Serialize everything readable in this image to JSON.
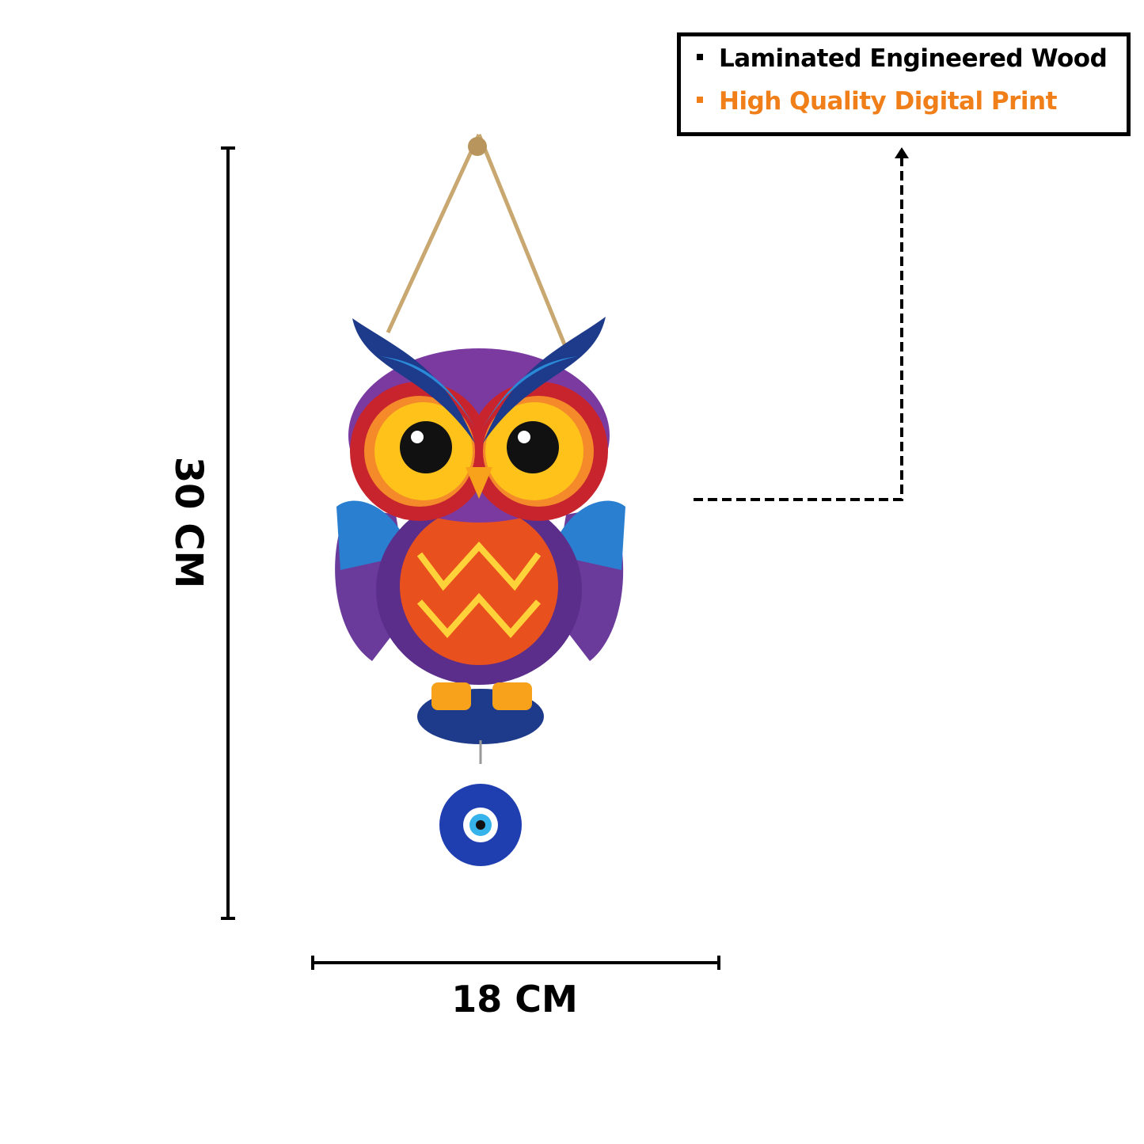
{
  "features": [
    {
      "text": "Laminated Engineered Wood",
      "color": "#000000"
    },
    {
      "text": "High Quality Digital Print",
      "color": "#f07f1a"
    }
  ],
  "dimensions": {
    "height": "30 CM",
    "width": "18 CM"
  },
  "product": {
    "image": "owl-wall-hanging-with-evil-eye-icon"
  }
}
